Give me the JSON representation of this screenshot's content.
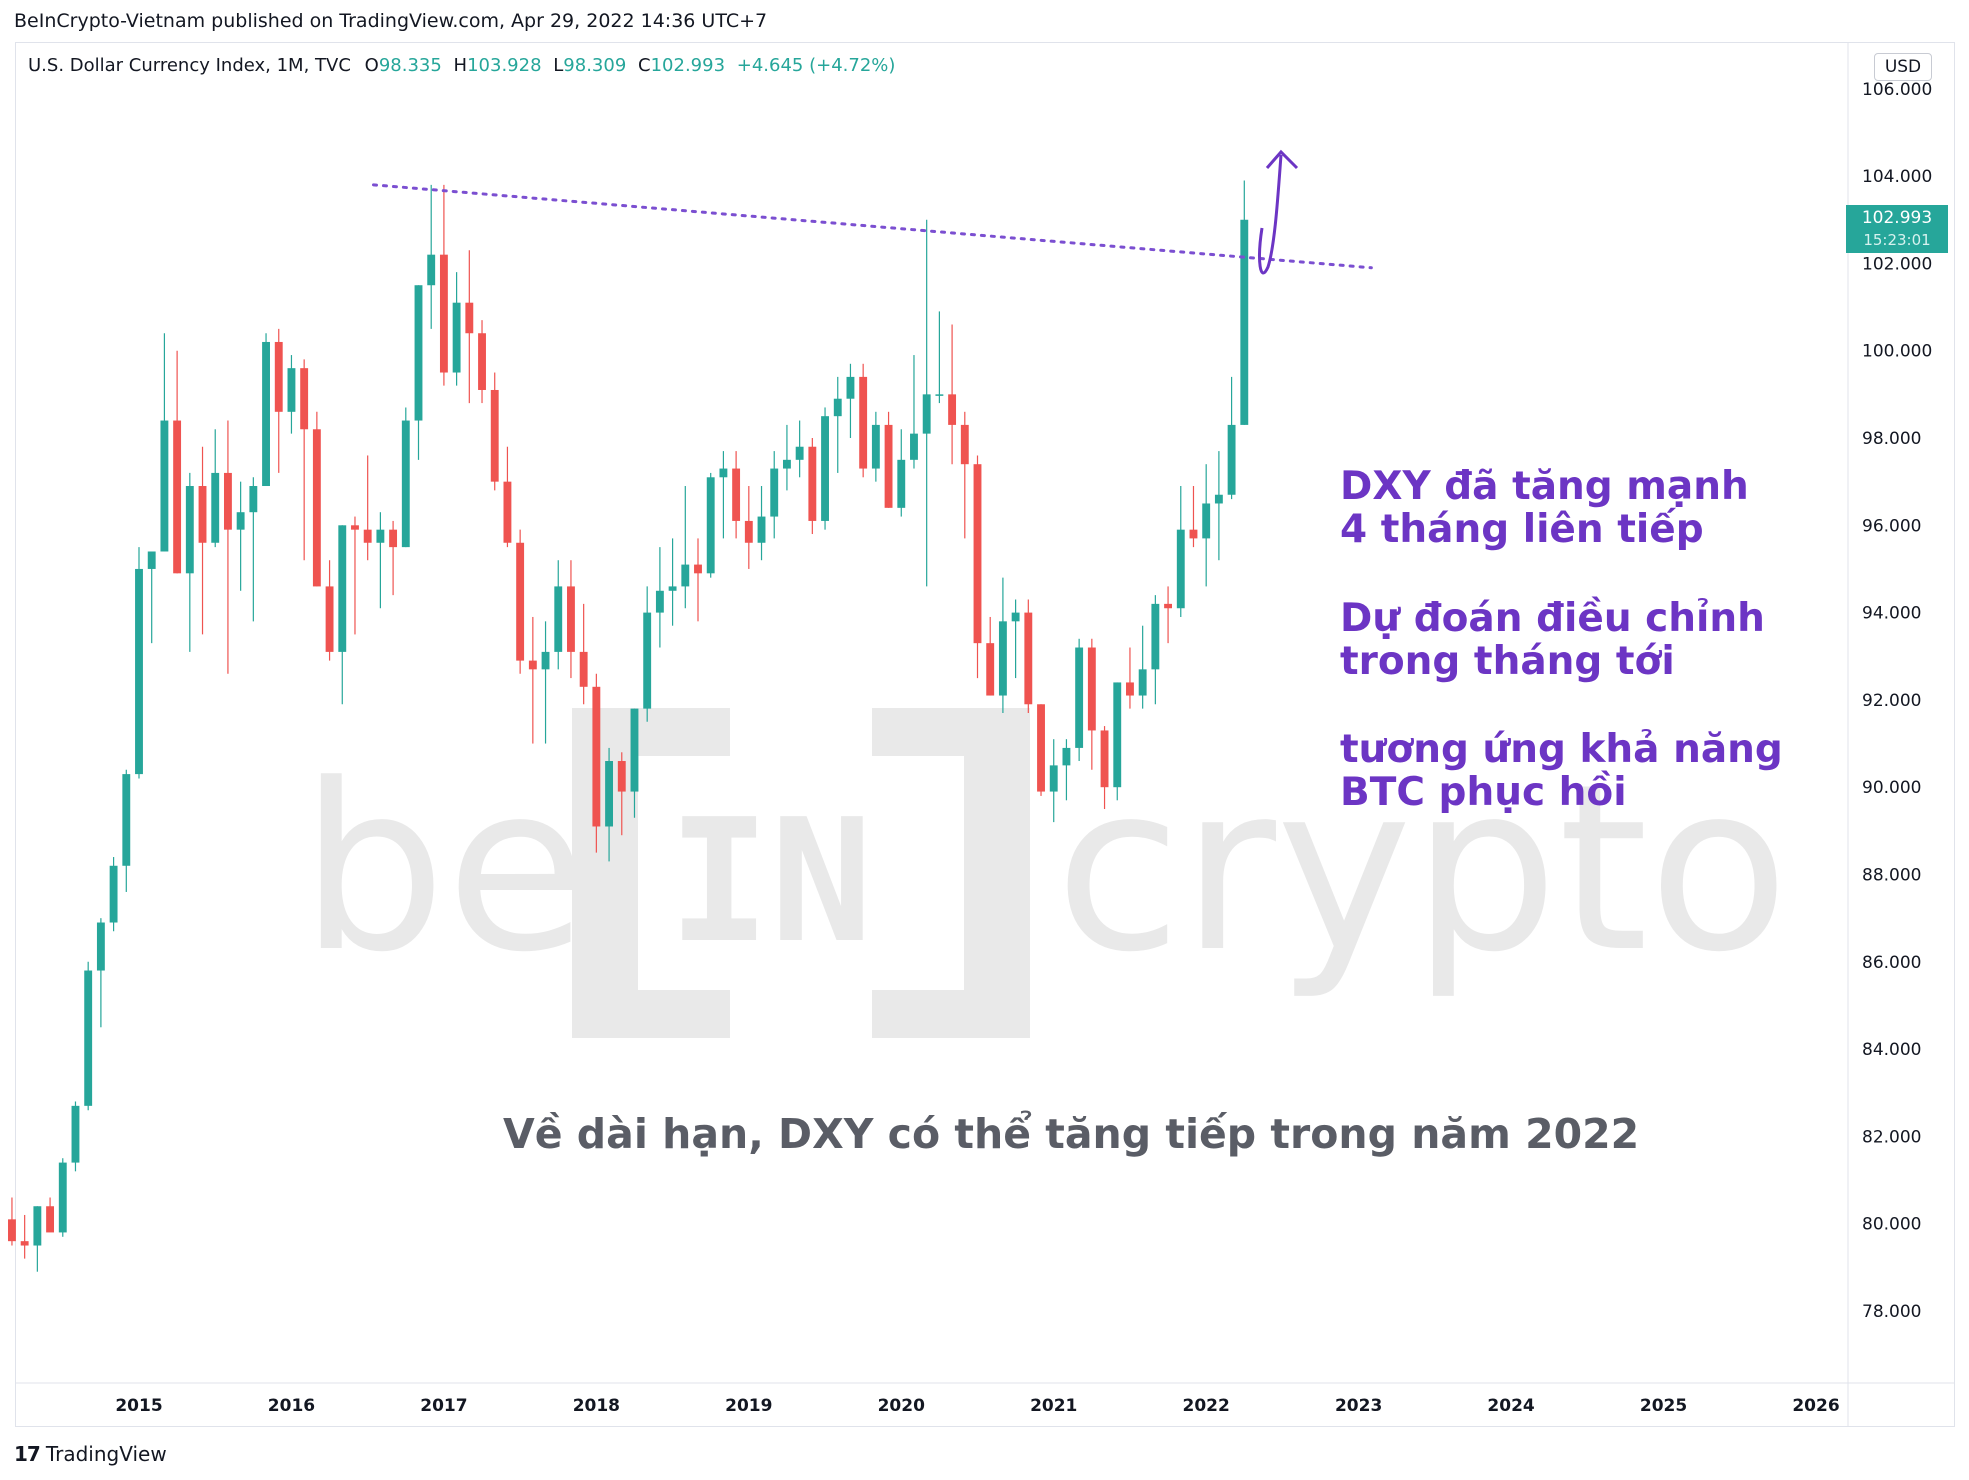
{
  "header": {
    "published": "BeInCrypto-Vietnam published on TradingView.com, Apr 29, 2022 14:36 UTC+7"
  },
  "legend": {
    "symbol": "U.S. Dollar Currency Index, 1M, TVC",
    "o_label": "O",
    "o_value": "98.335",
    "h_label": "H",
    "h_value": "103.928",
    "l_label": "L",
    "l_value": "98.309",
    "c_label": "C",
    "c_value": "102.993",
    "change": "+4.645 (+4.72%)"
  },
  "price_axis": {
    "currency": "USD",
    "last_price": "102.993",
    "countdown": "15:23:01"
  },
  "annotations": {
    "line1a": "DXY đã tăng mạnh",
    "line1b": "4 tháng liên tiếp",
    "line2a": "Dự đoán điều chỉnh",
    "line2b": "trong tháng tới",
    "line3a": "tương ứng khả năng",
    "line3b": "BTC phục hồi",
    "bottom": "Về dài hạn, DXY có thể tăng tiếp trong năm 2022"
  },
  "watermark": {
    "text": "be[IN]crypto"
  },
  "footer": {
    "logo": "17",
    "brand": "TradingView"
  },
  "colors": {
    "up": "#26a69a",
    "down": "#ef5350",
    "trendline": "#7b4fd1",
    "annotation": "#6c35c4",
    "watermark": "#e8e8e8"
  },
  "chart_data": {
    "type": "candlestick",
    "title": "U.S. Dollar Currency Index, 1M, TVC",
    "x_ticks": [
      "2015",
      "2016",
      "2017",
      "2018",
      "2019",
      "2020",
      "2021",
      "2022",
      "2023",
      "2024",
      "2025",
      "2026"
    ],
    "y_ticks": [
      "78.000",
      "80.000",
      "82.000",
      "84.000",
      "86.000",
      "88.000",
      "90.000",
      "92.000",
      "94.000",
      "96.000",
      "98.000",
      "100.000",
      "102.000",
      "104.000",
      "106.000"
    ],
    "ylim": [
      76.5,
      106.6
    ],
    "x_domain": [
      "2014-03",
      "2026-03"
    ],
    "candles": [
      [
        "2014-03",
        80.1,
        80.6,
        79.5,
        79.6
      ],
      [
        "2014-04",
        79.6,
        80.2,
        79.2,
        79.5
      ],
      [
        "2014-05",
        79.5,
        80.4,
        78.9,
        80.4
      ],
      [
        "2014-06",
        80.4,
        80.6,
        79.9,
        79.8
      ],
      [
        "2014-07",
        79.8,
        81.5,
        79.7,
        81.4
      ],
      [
        "2014-08",
        81.4,
        82.8,
        81.2,
        82.7
      ],
      [
        "2014-09",
        82.7,
        86.0,
        82.6,
        85.8
      ],
      [
        "2014-10",
        85.8,
        87.0,
        84.5,
        86.9
      ],
      [
        "2014-11",
        86.9,
        88.4,
        86.7,
        88.2
      ],
      [
        "2014-12",
        88.2,
        90.4,
        87.6,
        90.3
      ],
      [
        "2015-01",
        90.3,
        95.5,
        90.2,
        95.0
      ],
      [
        "2015-02",
        95.0,
        95.4,
        93.3,
        95.4
      ],
      [
        "2015-03",
        95.4,
        100.4,
        95.4,
        98.4
      ],
      [
        "2015-04",
        98.4,
        100.0,
        94.9,
        94.9
      ],
      [
        "2015-05",
        94.9,
        97.2,
        93.1,
        96.9
      ],
      [
        "2015-06",
        96.9,
        97.8,
        93.5,
        95.6
      ],
      [
        "2015-07",
        95.6,
        98.2,
        95.5,
        97.2
      ],
      [
        "2015-08",
        97.2,
        98.4,
        92.6,
        95.9
      ],
      [
        "2015-09",
        95.9,
        97.0,
        94.5,
        96.3
      ],
      [
        "2015-10",
        96.3,
        97.1,
        93.8,
        96.9
      ],
      [
        "2015-11",
        96.9,
        100.4,
        96.9,
        100.2
      ],
      [
        "2015-12",
        100.2,
        100.5,
        97.2,
        98.6
      ],
      [
        "2015-01",
        98.6,
        99.9,
        98.1,
        99.6
      ],
      [
        "2016-02",
        99.6,
        99.8,
        95.2,
        98.2
      ],
      [
        "2016-03",
        98.2,
        98.6,
        94.6,
        94.6
      ],
      [
        "2016-04",
        94.6,
        95.2,
        92.9,
        93.1
      ],
      [
        "2016-05",
        93.1,
        96.0,
        91.9,
        96.0
      ],
      [
        "2016-06",
        96.0,
        96.2,
        93.5,
        95.9
      ],
      [
        "2016-07",
        95.9,
        97.6,
        95.2,
        95.6
      ],
      [
        "2016-08",
        95.6,
        96.3,
        94.1,
        95.9
      ],
      [
        "2016-09",
        95.9,
        96.1,
        94.4,
        95.5
      ],
      [
        "2016-10",
        95.5,
        98.7,
        95.5,
        98.4
      ],
      [
        "2016-11",
        98.4,
        101.5,
        97.5,
        101.5
      ],
      [
        "2016-12",
        101.5,
        103.8,
        100.5,
        102.2
      ],
      [
        "2017-01",
        102.2,
        103.8,
        99.2,
        99.5
      ],
      [
        "2017-02",
        99.5,
        101.8,
        99.2,
        101.1
      ],
      [
        "2017-03",
        101.1,
        102.3,
        98.8,
        100.4
      ],
      [
        "2017-04",
        100.4,
        100.7,
        98.8,
        99.1
      ],
      [
        "2017-05",
        99.1,
        99.5,
        96.8,
        97.0
      ],
      [
        "2017-06",
        97.0,
        97.8,
        95.5,
        95.6
      ],
      [
        "2017-07",
        95.6,
        95.9,
        92.6,
        92.9
      ],
      [
        "2017-08",
        92.9,
        93.9,
        91.0,
        92.7
      ],
      [
        "2017-09",
        92.7,
        93.8,
        91.0,
        93.1
      ],
      [
        "2017-10",
        93.1,
        95.2,
        92.7,
        94.6
      ],
      [
        "2017-11",
        94.6,
        95.2,
        92.5,
        93.1
      ],
      [
        "2017-12",
        93.1,
        94.2,
        91.9,
        92.3
      ],
      [
        "2018-01",
        92.3,
        92.6,
        88.5,
        89.1
      ],
      [
        "2018-02",
        89.1,
        90.9,
        88.3,
        90.6
      ],
      [
        "2018-03",
        90.6,
        90.8,
        88.9,
        89.9
      ],
      [
        "2018-04",
        89.9,
        91.8,
        89.3,
        91.8
      ],
      [
        "2018-05",
        91.8,
        94.6,
        91.5,
        94.0
      ],
      [
        "2018-06",
        94.0,
        95.5,
        93.2,
        94.5
      ],
      [
        "2018-07",
        94.5,
        95.7,
        93.7,
        94.6
      ],
      [
        "2018-08",
        94.6,
        96.9,
        94.1,
        95.1
      ],
      [
        "2018-09",
        95.1,
        95.7,
        93.8,
        94.9
      ],
      [
        "2018-10",
        94.9,
        97.2,
        94.8,
        97.1
      ],
      [
        "2018-11",
        97.1,
        97.7,
        95.7,
        97.3
      ],
      [
        "2018-12",
        97.3,
        97.7,
        95.7,
        96.1
      ],
      [
        "2019-01",
        96.1,
        96.9,
        95.0,
        95.6
      ],
      [
        "2019-02",
        95.6,
        96.9,
        95.2,
        96.2
      ],
      [
        "2019-03",
        96.2,
        97.7,
        95.7,
        97.3
      ],
      [
        "2019-04",
        97.3,
        98.3,
        96.8,
        97.5
      ],
      [
        "2019-05",
        97.5,
        98.4,
        97.1,
        97.8
      ],
      [
        "2019-06",
        97.8,
        98.0,
        95.8,
        96.1
      ],
      [
        "2019-07",
        96.1,
        98.7,
        95.9,
        98.5
      ],
      [
        "2019-08",
        98.5,
        99.4,
        97.2,
        98.9
      ],
      [
        "2019-09",
        98.9,
        99.7,
        98.0,
        99.4
      ],
      [
        "2019-10",
        99.4,
        99.7,
        97.1,
        97.3
      ],
      [
        "2019-11",
        97.3,
        98.6,
        97.0,
        98.3
      ],
      [
        "2019-12",
        98.3,
        98.6,
        96.4,
        96.4
      ],
      [
        "2020-01",
        96.4,
        98.2,
        96.2,
        97.5
      ],
      [
        "2020-02",
        97.5,
        99.9,
        97.3,
        98.1
      ],
      [
        "2020-03",
        98.1,
        103.0,
        94.6,
        99.0
      ],
      [
        "2020-04",
        99.0,
        100.9,
        98.8,
        99.0
      ],
      [
        "2020-05",
        99.0,
        100.6,
        97.4,
        98.3
      ],
      [
        "2020-06",
        98.3,
        98.6,
        95.7,
        97.4
      ],
      [
        "2020-07",
        97.4,
        97.6,
        92.5,
        93.3
      ],
      [
        "2020-08",
        93.3,
        93.9,
        92.1,
        92.1
      ],
      [
        "2020-09",
        92.1,
        94.8,
        91.7,
        93.8
      ],
      [
        "2020-10",
        93.8,
        94.3,
        92.5,
        94.0
      ],
      [
        "2020-11",
        94.0,
        94.3,
        91.7,
        91.9
      ],
      [
        "2020-12",
        91.9,
        91.9,
        89.8,
        89.9
      ],
      [
        "2021-01",
        89.9,
        91.1,
        89.2,
        90.5
      ],
      [
        "2021-02",
        90.5,
        91.1,
        89.7,
        90.9
      ],
      [
        "2021-03",
        90.9,
        93.4,
        90.6,
        93.2
      ],
      [
        "2021-04",
        93.2,
        93.4,
        90.4,
        91.3
      ],
      [
        "2021-05",
        91.3,
        91.4,
        89.5,
        90.0
      ],
      [
        "2021-06",
        90.0,
        92.4,
        89.7,
        92.4
      ],
      [
        "2021-07",
        92.4,
        93.2,
        91.8,
        92.1
      ],
      [
        "2021-08",
        92.1,
        93.7,
        91.8,
        92.7
      ],
      [
        "2021-09",
        92.7,
        94.4,
        91.9,
        94.2
      ],
      [
        "2021-10",
        94.2,
        94.6,
        93.3,
        94.1
      ],
      [
        "2021-11",
        94.1,
        96.9,
        93.9,
        95.9
      ],
      [
        "2021-12",
        95.9,
        96.9,
        95.5,
        95.7
      ],
      [
        "2022-01",
        95.7,
        97.4,
        94.6,
        96.5
      ],
      [
        "2022-02",
        96.5,
        97.7,
        95.2,
        96.7
      ],
      [
        "2022-03",
        96.7,
        99.4,
        96.6,
        98.3
      ],
      [
        "2022-04",
        98.3,
        103.9,
        98.3,
        103.0
      ]
    ],
    "trendline": {
      "from": [
        "2016-11",
        103.8
      ],
      "to": [
        "2023-02",
        101.9
      ]
    }
  }
}
